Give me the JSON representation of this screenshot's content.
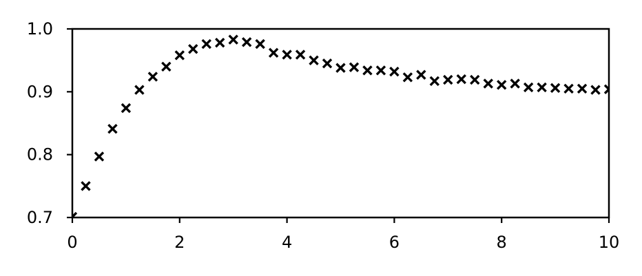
{
  "chart_data": {
    "type": "scatter",
    "title": "",
    "xlabel": "",
    "ylabel": "",
    "xlim": [
      0,
      10
    ],
    "ylim": [
      0.7,
      1.0
    ],
    "grid": false,
    "marker": "x",
    "color": "#000000",
    "xticks": [
      0,
      2,
      4,
      6,
      8,
      10
    ],
    "xtick_labels": [
      "0",
      "2",
      "4",
      "6",
      "8",
      "10"
    ],
    "yticks": [
      0.7,
      0.8,
      0.9,
      1.0
    ],
    "ytick_labels": [
      "0.7",
      "0.8",
      "0.9",
      "1.0"
    ],
    "x": [
      0,
      0.25,
      0.5,
      0.75,
      1.0,
      1.25,
      1.5,
      1.75,
      2.0,
      2.25,
      2.5,
      2.75,
      3.0,
      3.25,
      3.5,
      3.75,
      4.0,
      4.25,
      4.5,
      4.75,
      5.0,
      5.25,
      5.5,
      5.75,
      6.0,
      6.25,
      6.5,
      6.75,
      7.0,
      7.25,
      7.5,
      7.75,
      8.0,
      8.25,
      8.5,
      8.75,
      9.0,
      9.25,
      9.5,
      9.75,
      10.0
    ],
    "y": [
      0.701,
      0.75,
      0.797,
      0.841,
      0.874,
      0.903,
      0.924,
      0.94,
      0.958,
      0.968,
      0.976,
      0.978,
      0.983,
      0.979,
      0.976,
      0.962,
      0.959,
      0.959,
      0.95,
      0.945,
      0.938,
      0.939,
      0.934,
      0.934,
      0.932,
      0.923,
      0.927,
      0.917,
      0.919,
      0.92,
      0.919,
      0.913,
      0.911,
      0.913,
      0.907,
      0.907,
      0.906,
      0.905,
      0.905,
      0.903,
      0.904
    ]
  }
}
